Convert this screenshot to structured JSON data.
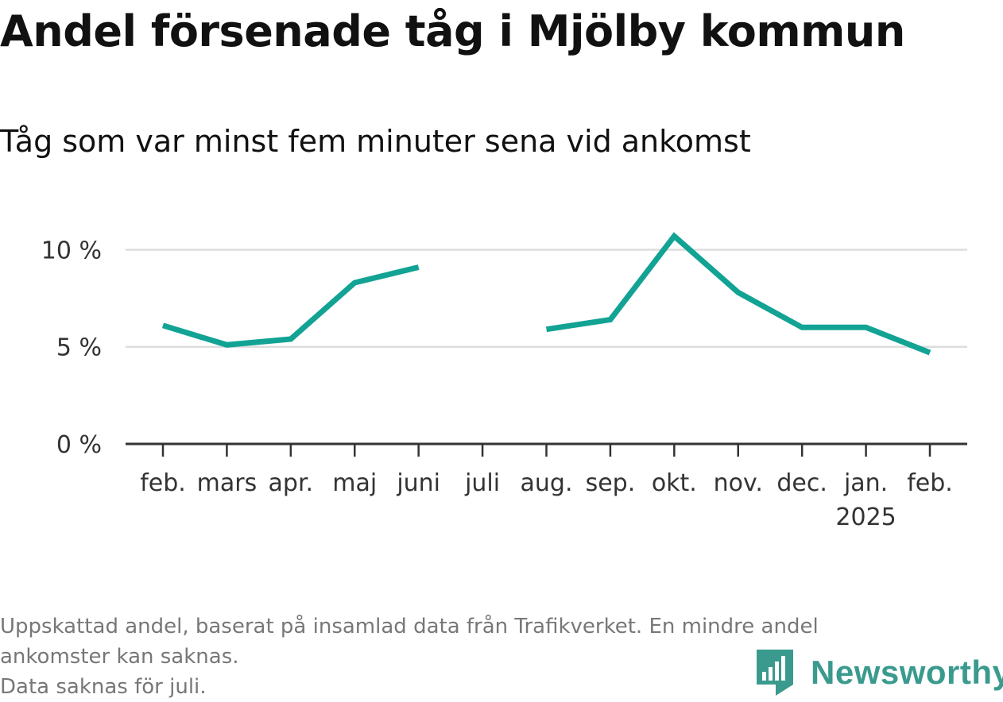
{
  "title": "Andel försenade tåg i Mjölby kommun",
  "subtitle": "Tåg som var minst fem minuter sena vid ankomst",
  "footnote": {
    "line1": "Uppskattad andel, baserat på insamlad data från Trafikverket. En mindre andel",
    "line2": "ankomster kan saknas.",
    "line3": "Data saknas för juli."
  },
  "brand": {
    "name": "Newsworthy",
    "color": "#3a9a8e"
  },
  "colors": {
    "line": "#12a394",
    "grid": "#dddddd",
    "axis": "#333333"
  },
  "chart_data": {
    "type": "line",
    "title": "Andel försenade tåg i Mjölby kommun",
    "subtitle": "Tåg som var minst fem minuter sena vid ankomst",
    "categories": [
      "feb.",
      "mars",
      "apr.",
      "maj",
      "juni",
      "juli",
      "aug.",
      "sep.",
      "okt.",
      "nov.",
      "dec.",
      "jan.",
      "feb."
    ],
    "category_sublabels": [
      "",
      "",
      "",
      "",
      "",
      "",
      "",
      "",
      "",
      "",
      "",
      "2025",
      ""
    ],
    "series": [
      {
        "values": [
          6.1,
          5.1,
          5.4,
          8.3,
          9.1,
          null,
          5.9,
          6.4,
          10.7,
          7.8,
          6.0,
          6.0,
          4.7
        ]
      }
    ],
    "ylim": [
      0,
      11
    ],
    "yticks": [
      0,
      5,
      10
    ],
    "ytick_labels": [
      "0 %",
      "5 %",
      "10 %"
    ],
    "grid": true,
    "xlabel": "",
    "ylabel": ""
  }
}
